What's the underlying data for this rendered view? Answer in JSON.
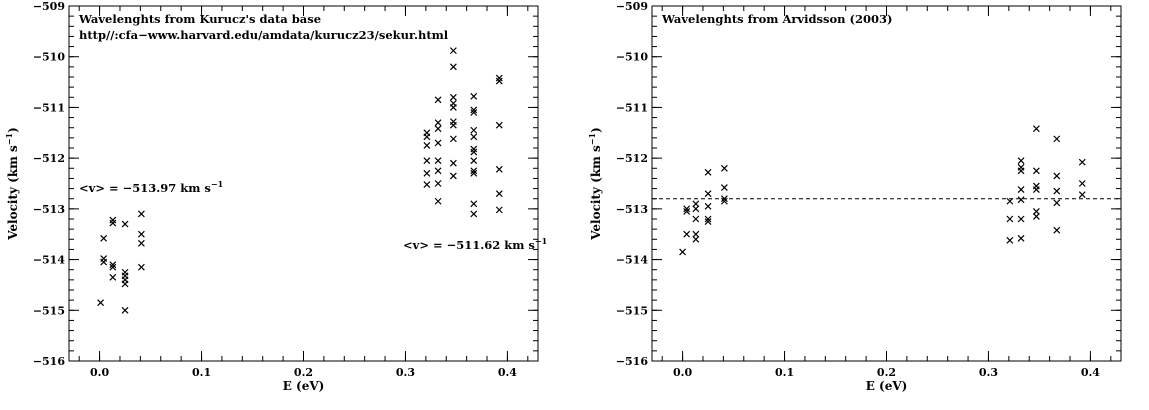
{
  "chart_data": [
    {
      "type": "scatter",
      "title": "",
      "annotations": [
        {
          "text": "Wavelenghts from Kurucz's data base"
        },
        {
          "text": "http//:cfa−www.harvard.edu/amdata/kurucz23/sekur.html"
        },
        {
          "text": "<v> = −513.97 km s",
          "sup": "−1"
        },
        {
          "text": "<v> = −511.62 km s",
          "sup": "−1"
        }
      ],
      "xlabel": "E (eV)",
      "ylabel": "Velocity (km s",
      "ylabel_sup": "−1",
      "ylabel_close": ")",
      "xlim": [
        -0.03,
        0.43
      ],
      "ylim": [
        -516,
        -509
      ],
      "xticks": [
        0.0,
        0.1,
        0.2,
        0.3,
        0.4
      ],
      "xtick_labels": [
        "0.0",
        "0.1",
        "0.2",
        "0.3",
        "0.4"
      ],
      "yticks": [
        -516,
        -515,
        -514,
        -513,
        -512,
        -511,
        -510,
        -509
      ],
      "ytick_labels": [
        "−516",
        "−515",
        "−514",
        "−513",
        "−512",
        "−511",
        "−510",
        "−509"
      ],
      "marker": "x",
      "points": [
        [
          0.001,
          -514.85
        ],
        [
          0.004,
          -513.58
        ],
        [
          0.004,
          -513.98
        ],
        [
          0.004,
          -514.05
        ],
        [
          0.013,
          -513.22
        ],
        [
          0.013,
          -513.28
        ],
        [
          0.013,
          -514.1
        ],
        [
          0.013,
          -514.15
        ],
        [
          0.013,
          -514.35
        ],
        [
          0.025,
          -513.3
        ],
        [
          0.025,
          -514.25
        ],
        [
          0.025,
          -514.32
        ],
        [
          0.025,
          -514.4
        ],
        [
          0.025,
          -514.48
        ],
        [
          0.025,
          -515.0
        ],
        [
          0.041,
          -513.1
        ],
        [
          0.041,
          -513.5
        ],
        [
          0.041,
          -513.68
        ],
        [
          0.041,
          -514.15
        ],
        [
          0.321,
          -511.5
        ],
        [
          0.321,
          -511.58
        ],
        [
          0.321,
          -511.75
        ],
        [
          0.321,
          -512.05
        ],
        [
          0.321,
          -512.3
        ],
        [
          0.321,
          -512.52
        ],
        [
          0.332,
          -510.85
        ],
        [
          0.332,
          -511.3
        ],
        [
          0.332,
          -511.42
        ],
        [
          0.332,
          -511.7
        ],
        [
          0.332,
          -512.05
        ],
        [
          0.332,
          -512.25
        ],
        [
          0.332,
          -512.5
        ],
        [
          0.332,
          -512.85
        ],
        [
          0.347,
          -509.88
        ],
        [
          0.347,
          -510.2
        ],
        [
          0.347,
          -510.8
        ],
        [
          0.347,
          -510.92
        ],
        [
          0.347,
          -511.0
        ],
        [
          0.347,
          -511.28
        ],
        [
          0.347,
          -511.35
        ],
        [
          0.347,
          -511.62
        ],
        [
          0.347,
          -512.1
        ],
        [
          0.347,
          -512.35
        ],
        [
          0.367,
          -510.78
        ],
        [
          0.367,
          -511.05
        ],
        [
          0.367,
          -511.1
        ],
        [
          0.367,
          -511.45
        ],
        [
          0.367,
          -511.58
        ],
        [
          0.367,
          -511.82
        ],
        [
          0.367,
          -511.88
        ],
        [
          0.367,
          -512.05
        ],
        [
          0.367,
          -512.25
        ],
        [
          0.367,
          -512.3
        ],
        [
          0.367,
          -512.9
        ],
        [
          0.367,
          -513.1
        ],
        [
          0.392,
          -510.42
        ],
        [
          0.392,
          -510.48
        ],
        [
          0.392,
          -511.35
        ],
        [
          0.392,
          -512.22
        ],
        [
          0.392,
          -512.7
        ],
        [
          0.392,
          -513.02
        ]
      ]
    },
    {
      "type": "scatter",
      "title": "",
      "annotations": [
        {
          "text": "Wavelenghts from Arvidsson (2003)"
        }
      ],
      "xlabel": "E (eV)",
      "ylabel": "Velocity (km s",
      "ylabel_sup": "−1",
      "ylabel_close": ")",
      "xlim": [
        -0.03,
        0.43
      ],
      "ylim": [
        -516,
        -509
      ],
      "xticks": [
        0.0,
        0.1,
        0.2,
        0.3,
        0.4
      ],
      "xtick_labels": [
        "0.0",
        "0.1",
        "0.2",
        "0.3",
        "0.4"
      ],
      "yticks": [
        -516,
        -515,
        -514,
        -513,
        -512,
        -511,
        -510,
        -509
      ],
      "ytick_labels": [
        "−516",
        "−515",
        "−514",
        "−513",
        "−512",
        "−511",
        "−510",
        "−509"
      ],
      "marker": "x",
      "reference_line": {
        "y": -512.8,
        "style": "dashed"
      },
      "points": [
        [
          0.0,
          -513.85
        ],
        [
          0.004,
          -513.0
        ],
        [
          0.004,
          -513.05
        ],
        [
          0.004,
          -513.5
        ],
        [
          0.013,
          -512.9
        ],
        [
          0.013,
          -513.0
        ],
        [
          0.013,
          -513.2
        ],
        [
          0.013,
          -513.5
        ],
        [
          0.013,
          -513.6
        ],
        [
          0.025,
          -512.28
        ],
        [
          0.025,
          -512.7
        ],
        [
          0.025,
          -512.95
        ],
        [
          0.025,
          -513.2
        ],
        [
          0.025,
          -513.25
        ],
        [
          0.041,
          -512.2
        ],
        [
          0.041,
          -512.58
        ],
        [
          0.041,
          -512.8
        ],
        [
          0.041,
          -512.85
        ],
        [
          0.321,
          -512.85
        ],
        [
          0.321,
          -513.2
        ],
        [
          0.321,
          -513.62
        ],
        [
          0.332,
          -512.05
        ],
        [
          0.332,
          -512.18
        ],
        [
          0.332,
          -512.25
        ],
        [
          0.332,
          -512.62
        ],
        [
          0.332,
          -512.82
        ],
        [
          0.332,
          -513.2
        ],
        [
          0.332,
          -513.58
        ],
        [
          0.347,
          -511.42
        ],
        [
          0.347,
          -512.25
        ],
        [
          0.347,
          -512.55
        ],
        [
          0.347,
          -512.62
        ],
        [
          0.347,
          -513.05
        ],
        [
          0.347,
          -513.15
        ],
        [
          0.367,
          -511.62
        ],
        [
          0.367,
          -512.35
        ],
        [
          0.367,
          -512.65
        ],
        [
          0.367,
          -512.88
        ],
        [
          0.367,
          -513.42
        ],
        [
          0.392,
          -512.08
        ],
        [
          0.392,
          -512.5
        ],
        [
          0.392,
          -512.72
        ]
      ]
    }
  ]
}
